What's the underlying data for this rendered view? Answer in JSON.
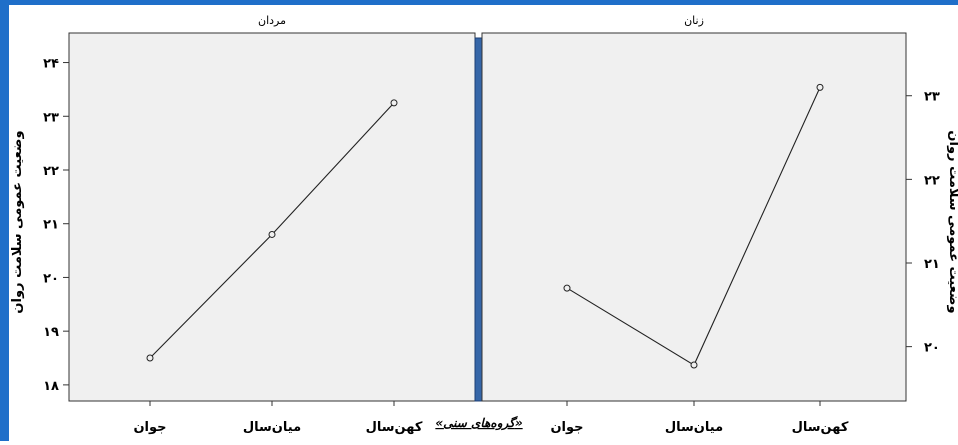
{
  "figure": {
    "frame_color": "#1f6fc9",
    "divider_color": "#3566a8",
    "panel_bg": "#f0f0f0",
    "line_color": "#222222",
    "x_axis_label": "«گروه‌های سنی»"
  },
  "chart_data": [
    {
      "type": "line",
      "title": "مردان",
      "ylabel": "وضعیت عمومی سلامت روان",
      "ylabel_side": "left",
      "categories": [
        "جوان",
        "میان‌سال",
        "کهن‌سال"
      ],
      "series": [
        {
          "values": [
            18.5,
            20.8,
            23.25
          ]
        }
      ],
      "ylim": [
        17.7,
        24.55
      ],
      "yticks": [
        18,
        19,
        20,
        21,
        22,
        23,
        24
      ],
      "ytick_labels": [
        "۱۸",
        "۱۹",
        "۲۰",
        "۲۱",
        "۲۲",
        "۲۳",
        "۲۴"
      ],
      "grid": false
    },
    {
      "type": "line",
      "title": "زنان",
      "ylabel": "وضعیت عمومی سلامت روان",
      "ylabel_side": "right",
      "categories": [
        "جوان",
        "میان‌سال",
        "کهن‌سال"
      ],
      "series": [
        {
          "values": [
            20.7,
            19.78,
            23.1
          ]
        }
      ],
      "ylim": [
        19.35,
        23.75
      ],
      "yticks": [
        20,
        21,
        22,
        23
      ],
      "ytick_labels": [
        "۲۰",
        "۲۱",
        "۲۲",
        "۲۳"
      ],
      "grid": false
    }
  ]
}
